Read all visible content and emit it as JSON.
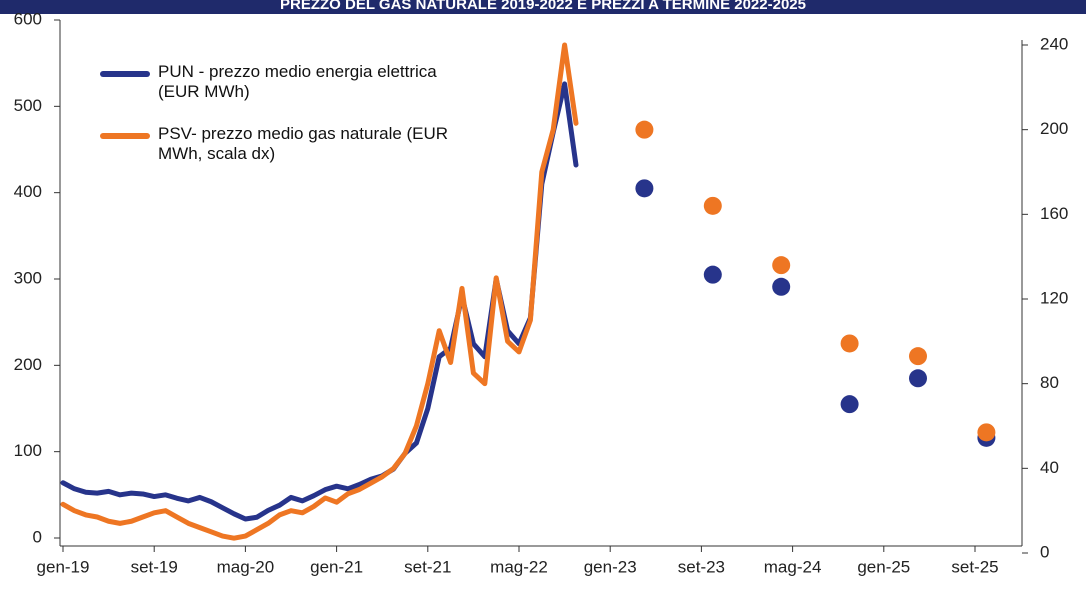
{
  "chart_data": {
    "type": "line",
    "title": "PREZZO DEL GAS NATURALE 2019-2022 E PREZZI A TERMINE 2022-2025",
    "categories": [
      "gen-19",
      null,
      null,
      null,
      null,
      null,
      null,
      null,
      "set-19",
      null,
      null,
      null,
      null,
      null,
      null,
      null,
      "mag-20",
      null,
      null,
      null,
      null,
      null,
      null,
      null,
      "gen-21",
      null,
      null,
      null,
      null,
      null,
      null,
      null,
      "set-21",
      null,
      null,
      null,
      null,
      null,
      null,
      null,
      "mag-22",
      null,
      null,
      null,
      null,
      null,
      null,
      null,
      "gen-23",
      null,
      null,
      null,
      null,
      null,
      null,
      null,
      "set-23",
      null,
      null,
      null,
      null,
      null,
      null,
      null,
      "mag-24",
      null,
      null,
      null,
      null,
      null,
      null,
      null,
      "gen-25",
      null,
      null,
      null,
      null,
      null,
      null,
      null,
      "set-25",
      null
    ],
    "series": [
      {
        "name": "PUN - prezzo medio energia elettrica (EUR MWh)",
        "color": "#27348b",
        "axis": "y",
        "values": [
          64,
          57,
          53,
          52,
          54,
          50,
          52,
          51,
          48,
          50,
          46,
          43,
          47,
          42,
          35,
          28,
          22,
          24,
          32,
          38,
          47,
          43,
          49,
          56,
          60,
          57,
          62,
          68,
          72,
          80,
          98,
          110,
          150,
          210,
          220,
          280,
          225,
          210,
          300,
          240,
          225,
          255,
          410,
          470,
          526,
          432,
          null,
          null,
          null,
          null,
          null,
          405,
          null,
          null,
          null,
          null,
          null,
          305,
          null,
          null,
          null,
          null,
          null,
          291,
          null,
          null,
          null,
          null,
          null,
          155,
          null,
          null,
          null,
          null,
          null,
          185,
          null,
          null,
          null,
          null,
          null,
          116
        ]
      },
      {
        "name": "PSV-  prezzo medio gas naturale (EUR MWh, scala dx)",
        "color": "#ee7623",
        "axis": "y2",
        "values": [
          23,
          20,
          18,
          17,
          15,
          14,
          15,
          17,
          19,
          20,
          17,
          14,
          12,
          10,
          8,
          7,
          8,
          11,
          14,
          18,
          20,
          19,
          22,
          26,
          24,
          28,
          30,
          33,
          36,
          40,
          47,
          60,
          80,
          105,
          90,
          125,
          85,
          80,
          130,
          100,
          95,
          110,
          180,
          200,
          240,
          203,
          null,
          null,
          null,
          null,
          null,
          200,
          null,
          null,
          null,
          null,
          null,
          164,
          null,
          null,
          null,
          null,
          null,
          136,
          null,
          null,
          null,
          null,
          null,
          99,
          null,
          null,
          null,
          null,
          null,
          93,
          null,
          null,
          null,
          null,
          null,
          57
        ]
      }
    ],
    "ylim": [
      0,
      600
    ],
    "yticks": [
      0,
      100,
      200,
      300,
      400,
      500,
      600
    ],
    "y2lim": [
      0,
      240
    ],
    "y2ticks": [
      0,
      40,
      80,
      120,
      160,
      200,
      240
    ]
  }
}
